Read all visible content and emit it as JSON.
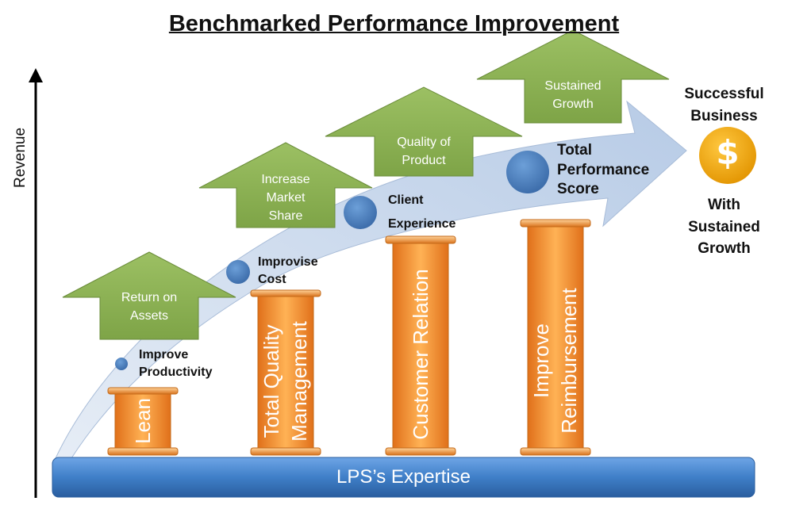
{
  "title": "Benchmarked Performance Improvement",
  "axis": {
    "y_label": "Revenue"
  },
  "base": {
    "label": "LPS’s Expertise"
  },
  "pillars": [
    {
      "label": "Lean"
    },
    {
      "label_line1": "Total Quality",
      "label_line2": "Management"
    },
    {
      "label": "Customer Relation"
    },
    {
      "label_line1": "Improve",
      "label_line2": "Reimbursement"
    }
  ],
  "arrows": [
    {
      "line1": "Return on",
      "line2": "Assets"
    },
    {
      "line1": "Increase",
      "line2": "Market",
      "line3": "Share"
    },
    {
      "line1": "Quality of",
      "line2": "Product"
    },
    {
      "line1": "Sustained",
      "line2": "Growth"
    }
  ],
  "milestones": [
    {
      "line1": "Improve",
      "line2": "Productivity"
    },
    {
      "line1": "Improvise",
      "line2": "Cost"
    },
    {
      "line1": "Client",
      "line2": "Experience"
    },
    {
      "line1": "Total",
      "line2": "Performance",
      "line3": "Score"
    }
  ],
  "outcome": {
    "top_line1": "Successful",
    "top_line2": "Business",
    "icon": "dollar-icon",
    "icon_glyph": "$",
    "bottom_line1": "With",
    "bottom_line2": "Sustained",
    "bottom_line3": "Growth"
  },
  "colors": {
    "pillar": "#f08a24",
    "arrow": "#8fb355",
    "base": "#3f7fc8",
    "circle": "#4a7fc0",
    "coin": "#f2a400",
    "sweep": "#c6d5ea"
  }
}
